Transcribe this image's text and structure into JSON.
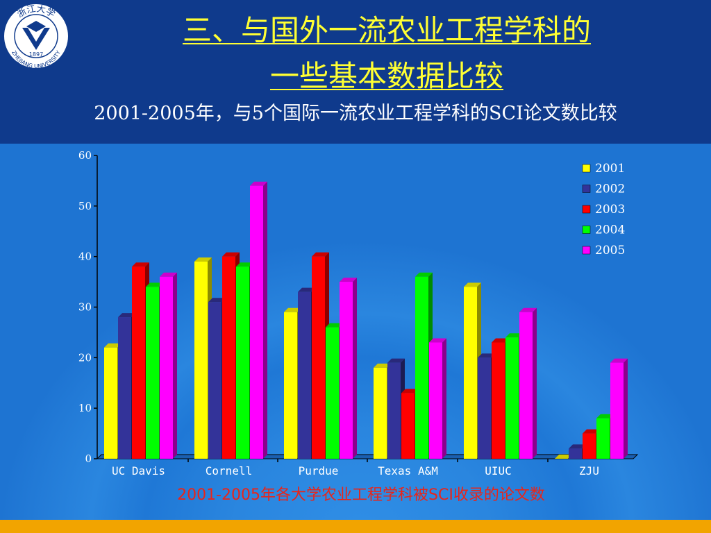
{
  "slide": {
    "title_line1": "三、与国外一流农业工程学科的",
    "title_line2": "一些基本数据比较",
    "subtitle": "2001-2005年，与5个国际一流农业工程学科的SCI论文数比较",
    "caption": "2001-2005年各大学农业工程学科被SCI收录的论文数",
    "logo": {
      "icon": "zhejiang-university-seal",
      "text_top": "浙江大学",
      "year": "1897",
      "text_bottom": "ZHEJIANG UNIVERSITY"
    }
  },
  "colors": {
    "header_bg": "#0f3a8c",
    "title": "#ffff33",
    "caption": "#e8251a",
    "bottom_bar": "#f2a400"
  },
  "chart_data": {
    "type": "bar",
    "categories": [
      "UC Davis",
      "Cornell",
      "Purdue",
      "Texas A&M",
      "UIUC",
      "ZJU"
    ],
    "series": [
      {
        "name": "2001",
        "color": "#ffff00",
        "values": [
          22,
          39,
          29,
          18,
          34,
          0
        ]
      },
      {
        "name": "2002",
        "color": "#333399",
        "values": [
          28,
          31,
          33,
          19,
          20,
          2
        ]
      },
      {
        "name": "2003",
        "color": "#ff0000",
        "values": [
          38,
          40,
          40,
          13,
          23,
          5
        ]
      },
      {
        "name": "2004",
        "color": "#00ff00",
        "values": [
          34,
          38,
          26,
          36,
          24,
          8
        ]
      },
      {
        "name": "2005",
        "color": "#ff00ff",
        "values": [
          36,
          54,
          35,
          23,
          29,
          19
        ]
      }
    ],
    "ylim": [
      0,
      60
    ],
    "yticks": [
      0,
      10,
      20,
      30,
      40,
      50,
      60
    ],
    "grid": false,
    "legend": "top-right",
    "style": "3d"
  }
}
